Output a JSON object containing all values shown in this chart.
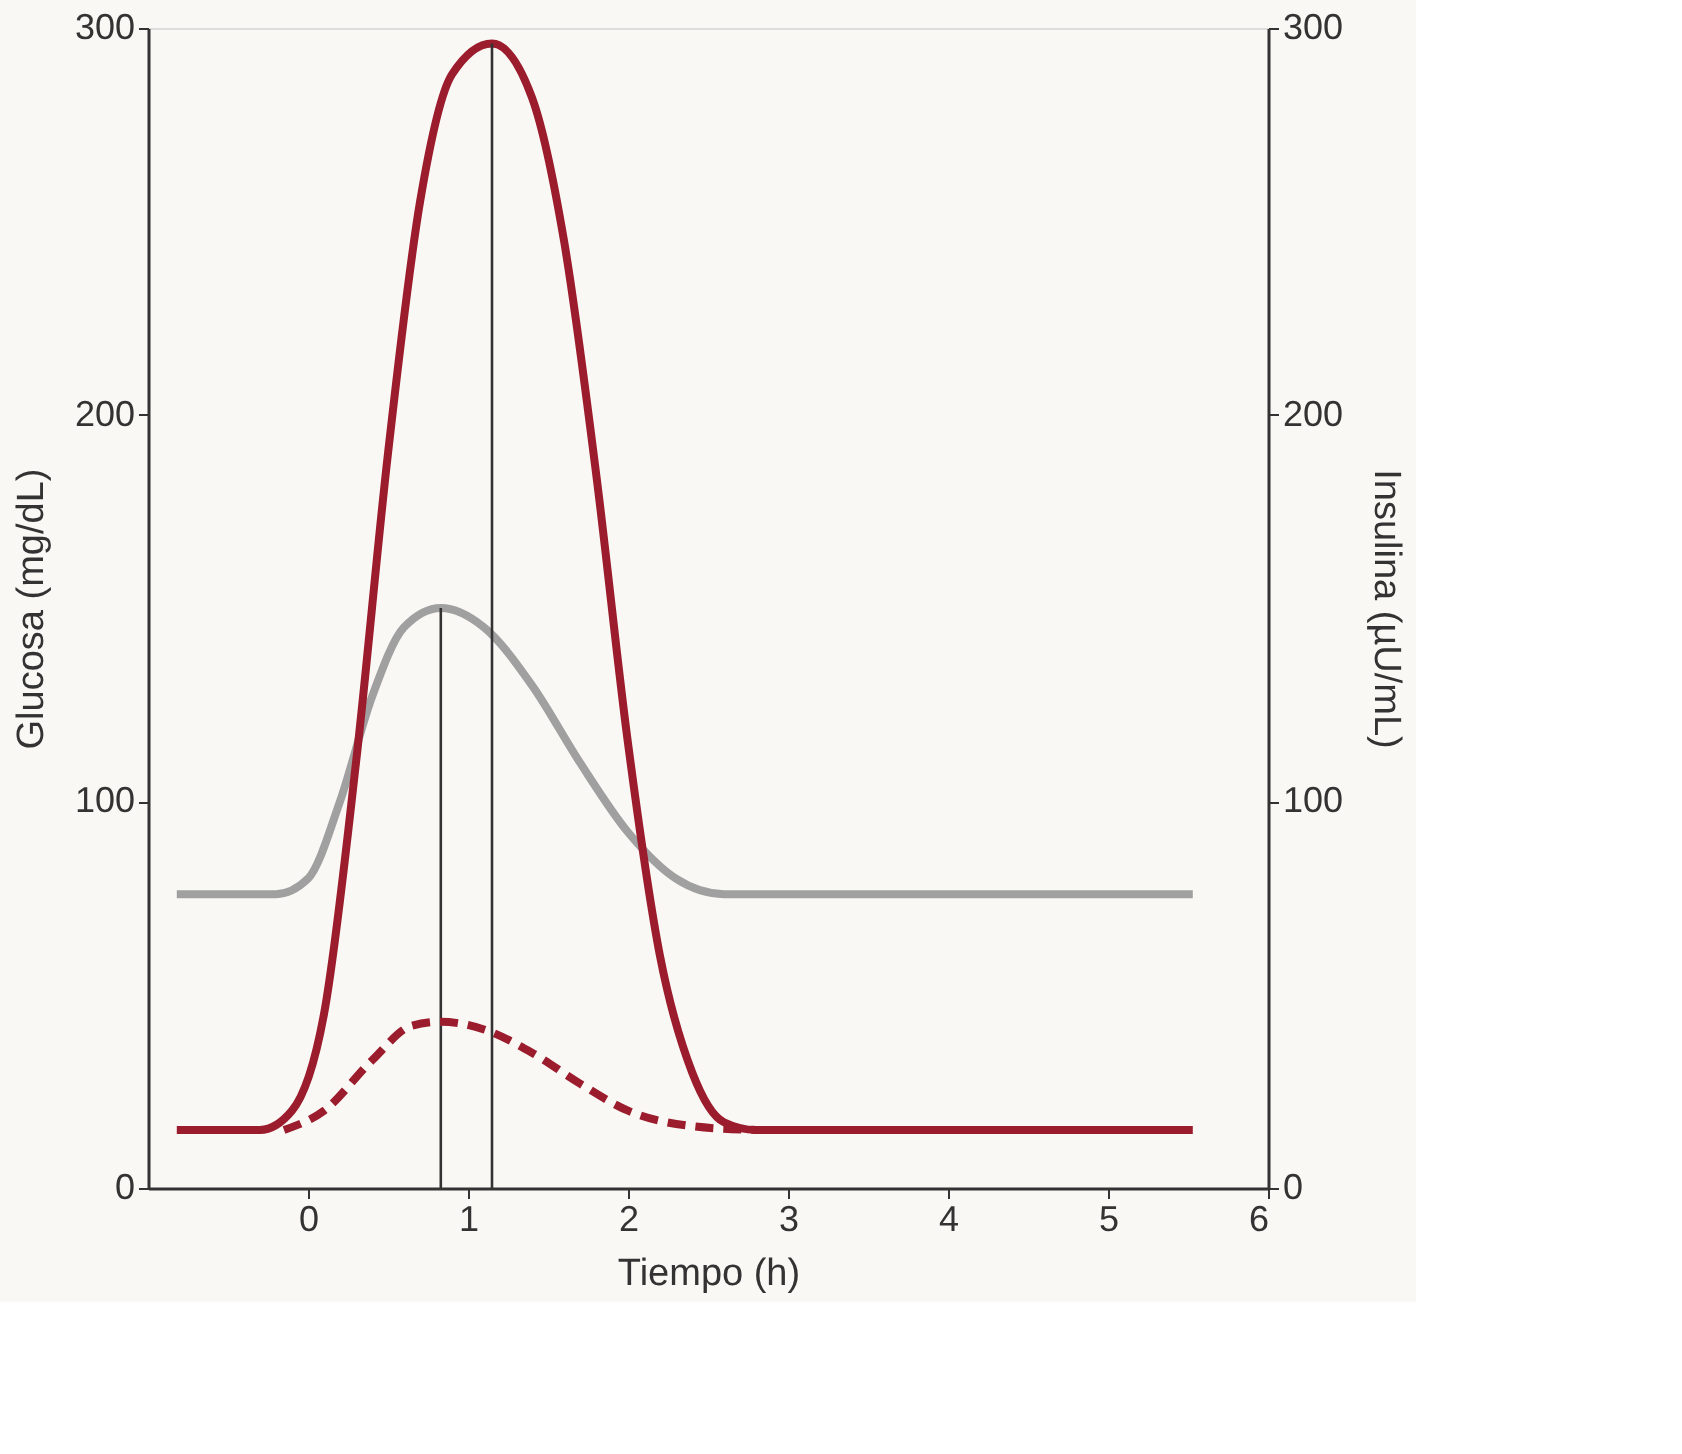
{
  "chart_data": {
    "type": "line",
    "xlabel": "Tiempo (h)",
    "ylabel": "Glucosa (mg/dL)",
    "y2label": "Insulina (µU/mL)",
    "xlim": [
      -1,
      6
    ],
    "xticks": [
      0,
      1,
      2,
      3,
      4,
      5,
      6
    ],
    "ylim": [
      0,
      300
    ],
    "yticks": [
      0,
      100,
      200,
      300
    ],
    "y2lim": [
      0,
      300
    ],
    "y2ticks": [
      0,
      100,
      200,
      300
    ],
    "grid": false,
    "marker": "none",
    "series": [
      {
        "color": "#a0a0a0",
        "line_style": "solid",
        "x": [
          -0.82,
          -0.2,
          0,
          0.2,
          0.4,
          0.6,
          0.83,
          1.1,
          1.4,
          1.7,
          2.0,
          2.3,
          2.6,
          3.5,
          5.53
        ],
        "values": [
          76,
          76,
          80,
          100,
          127,
          145,
          150,
          145,
          130,
          110,
          92,
          80,
          76,
          76,
          76
        ]
      },
      {
        "color": "#9b1c2c",
        "line_style": "solid",
        "axis": "y2",
        "x": [
          -0.82,
          -0.3,
          -0.1,
          0.1,
          0.3,
          0.5,
          0.7,
          0.9,
          1.15,
          1.4,
          1.6,
          1.8,
          2.0,
          2.2,
          2.4,
          2.6,
          2.8,
          3.5,
          5.53
        ],
        "values": [
          15,
          15,
          20,
          45,
          110,
          190,
          255,
          288,
          296,
          282,
          245,
          185,
          115,
          60,
          30,
          17,
          15,
          15,
          15
        ]
      },
      {
        "color": "#9b1c2c",
        "line_style": "dashed",
        "axis": "y2",
        "x": [
          -0.15,
          0.1,
          0.4,
          0.65,
          0.83,
          1.1,
          1.4,
          1.7,
          2.0,
          2.4,
          2.8
        ],
        "values": [
          15,
          20,
          33,
          42,
          43,
          41,
          35,
          27,
          20,
          16,
          15
        ]
      },
      {
        "color": "#333333",
        "line_style": "solid",
        "x": [
          0.83,
          0.83
        ],
        "values": [
          0,
          150
        ]
      },
      {
        "color": "#333333",
        "line_style": "solid",
        "axis": "y2",
        "x": [
          1.15,
          1.15
        ],
        "values": [
          0,
          296
        ]
      }
    ]
  }
}
